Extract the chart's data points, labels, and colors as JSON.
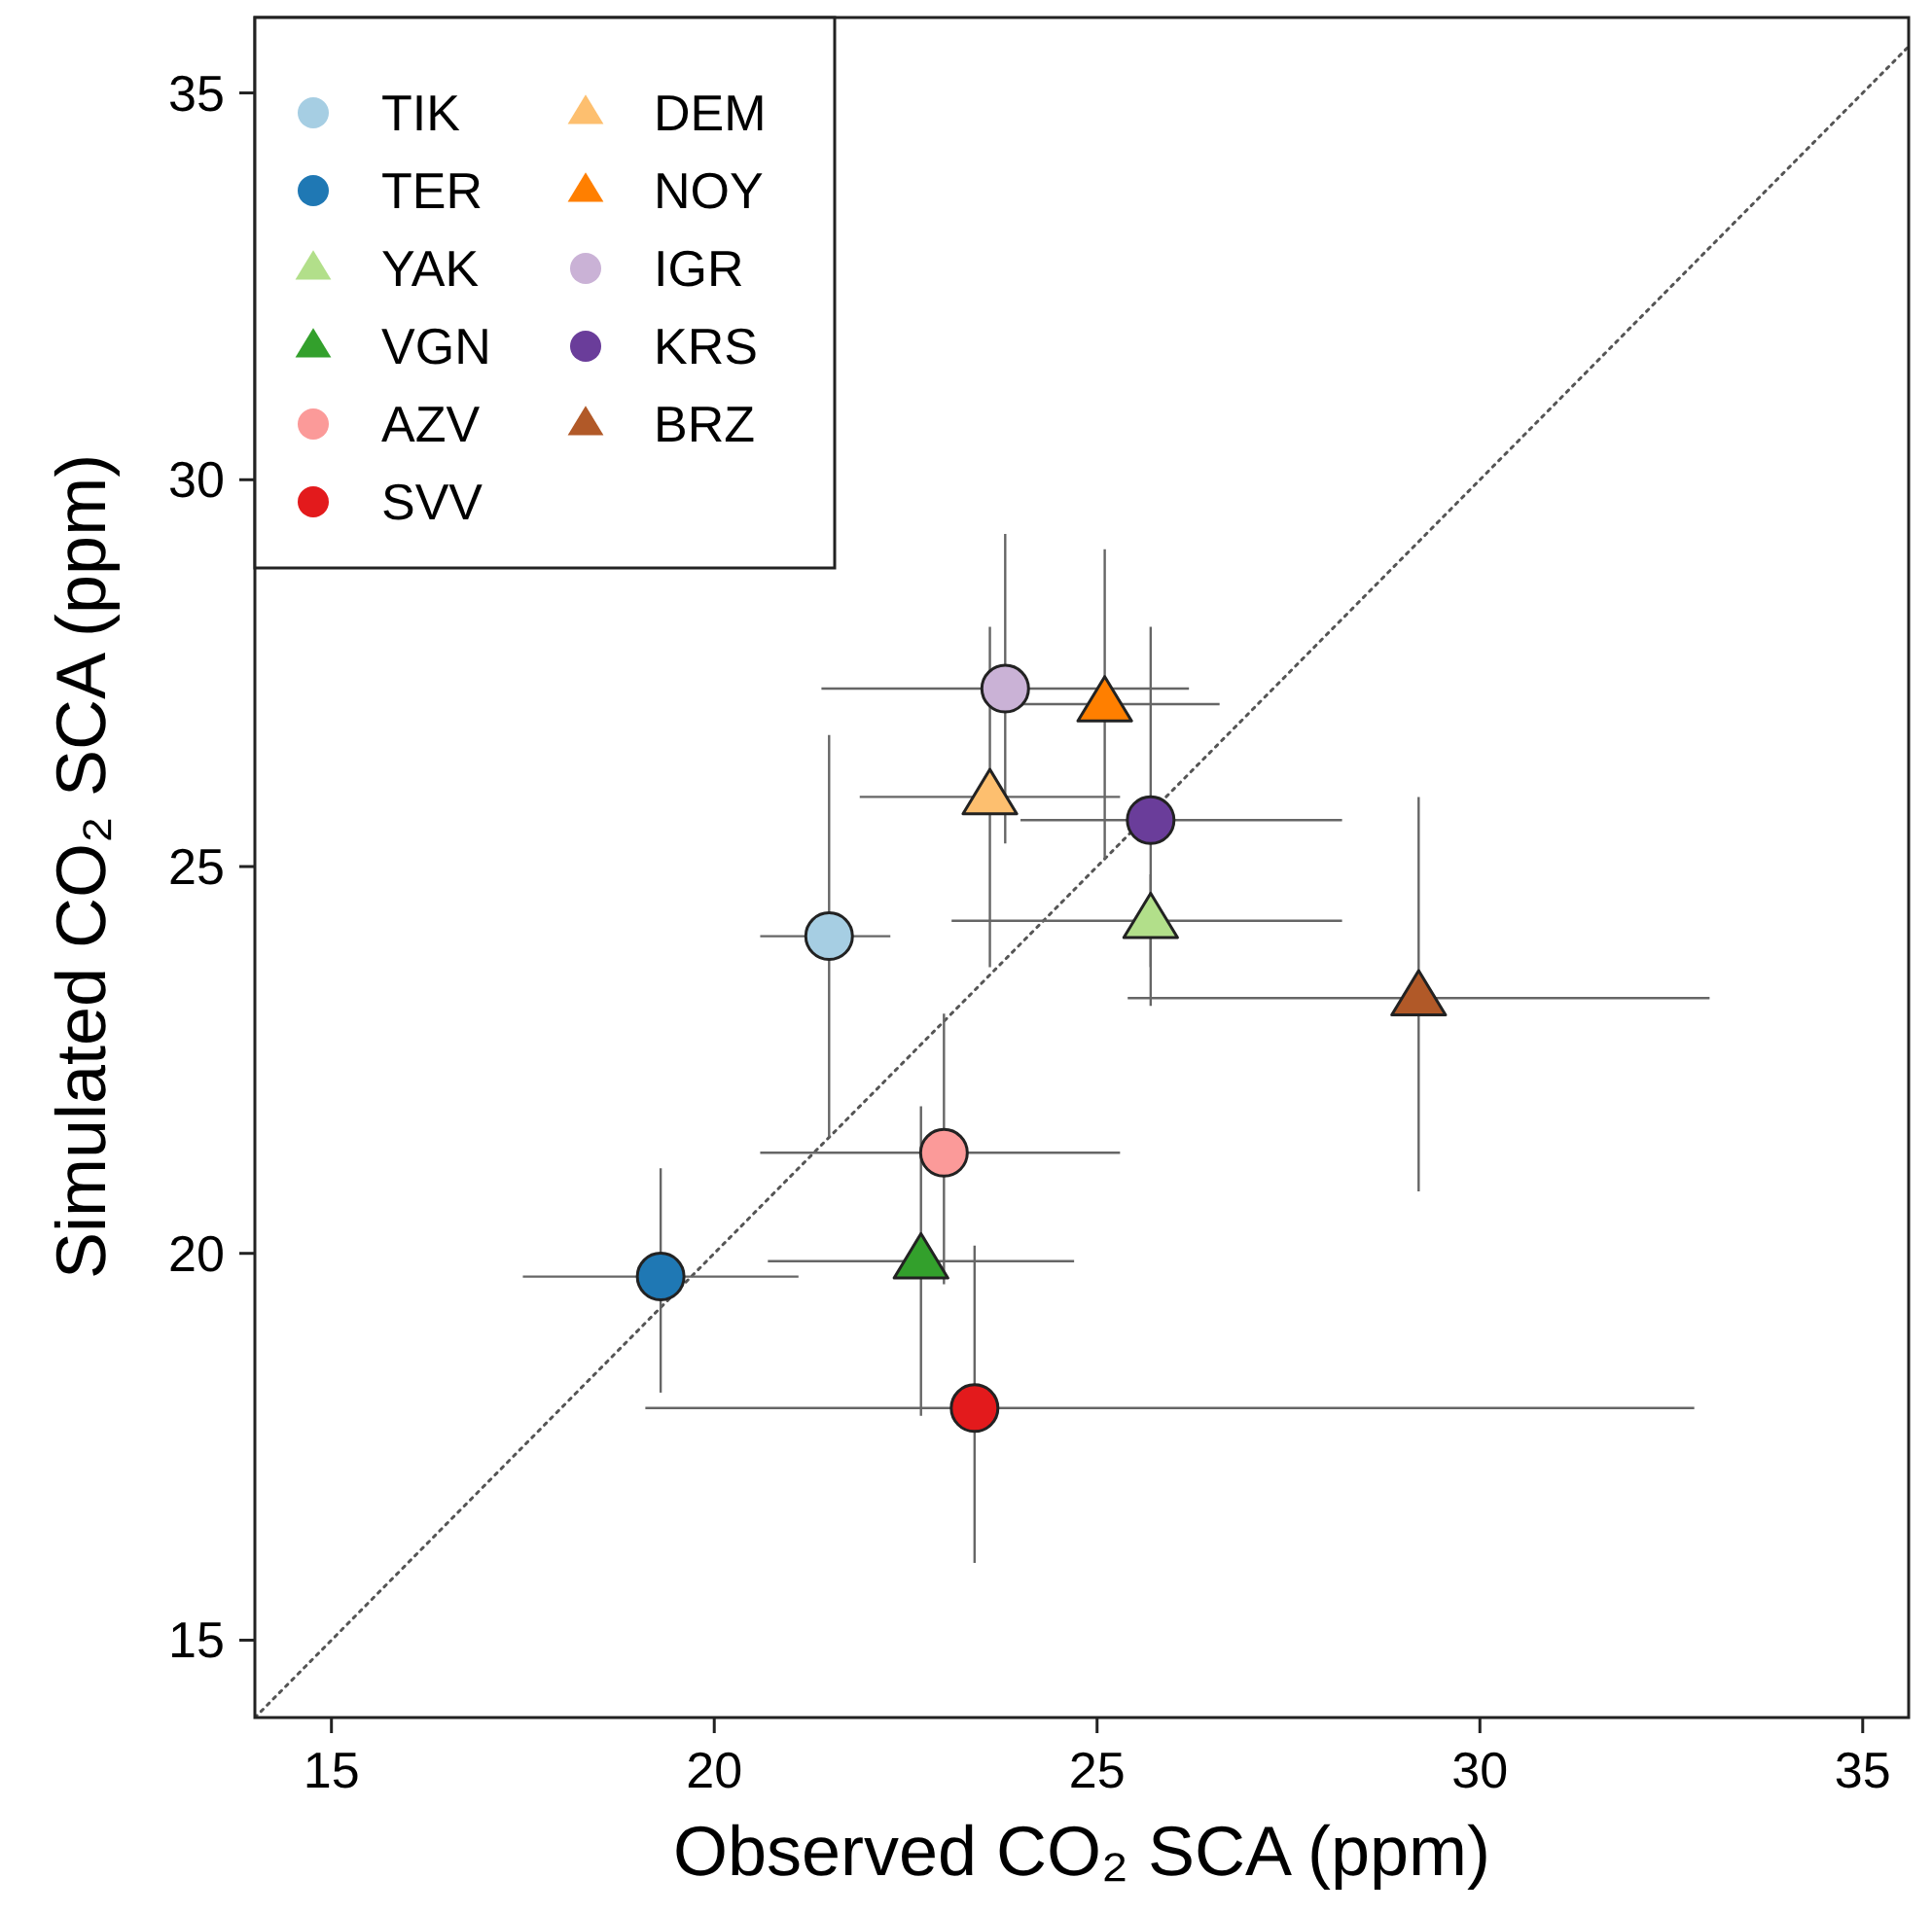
{
  "chart_data": {
    "type": "scatter",
    "xlabel": "Observed CO₂ SCA (ppm)",
    "ylabel": "Simulated CO₂ SCA (ppm)",
    "xlim": [
      14,
      35.6
    ],
    "ylim": [
      14,
      36
    ],
    "xticks": [
      15,
      20,
      25,
      30,
      35
    ],
    "yticks": [
      15,
      20,
      25,
      30,
      35
    ],
    "grid": false,
    "legend": "top left",
    "series": [
      {
        "type": "line",
        "x": [
          14,
          35.6
        ],
        "values": [
          14,
          35.6
        ],
        "color": "#555555",
        "line_style": "dotted"
      },
      {
        "name": "TIK",
        "color": "#a6cee3",
        "marker": "circle",
        "x": [
          21.5
        ],
        "values": [
          24.1
        ],
        "xerrors": [
          [
            20.6,
            22.3
          ]
        ],
        "errors": [
          [
            21.5,
            26.7
          ]
        ]
      },
      {
        "name": "TER",
        "color": "#1f78b4",
        "marker": "circle",
        "x": [
          19.3
        ],
        "values": [
          19.7
        ],
        "xerrors": [
          [
            17.5,
            21.1
          ]
        ],
        "errors": [
          [
            18.2,
            21.1
          ]
        ]
      },
      {
        "name": "YAK",
        "color": "#b2df8a",
        "marker": "triangle",
        "x": [
          25.7
        ],
        "values": [
          24.3
        ],
        "xerrors": [
          [
            23.1,
            28.2
          ]
        ],
        "errors": [
          [
            23.7,
            24.9
          ]
        ]
      },
      {
        "name": "VGN",
        "color": "#33a02c",
        "marker": "triangle",
        "x": [
          22.7
        ],
        "values": [
          19.9
        ],
        "xerrors": [
          [
            20.7,
            24.7
          ]
        ],
        "errors": [
          [
            17.9,
            21.9
          ]
        ]
      },
      {
        "name": "AZV",
        "color": "#fb9a99",
        "marker": "circle",
        "x": [
          23.0
        ],
        "values": [
          21.3
        ],
        "xerrors": [
          [
            20.6,
            25.3
          ]
        ],
        "errors": [
          [
            19.6,
            23.1
          ]
        ]
      },
      {
        "name": "SVV",
        "color": "#e31a1c",
        "marker": "circle",
        "x": [
          23.4
        ],
        "values": [
          18.0
        ],
        "xerrors": [
          [
            19.1,
            32.8
          ]
        ],
        "errors": [
          [
            16.0,
            20.1
          ]
        ]
      },
      {
        "name": "DEM",
        "color": "#fdbf6f",
        "marker": "triangle",
        "x": [
          23.6
        ],
        "values": [
          25.9
        ],
        "xerrors": [
          [
            21.9,
            25.3
          ]
        ],
        "errors": [
          [
            23.7,
            28.1
          ]
        ]
      },
      {
        "name": "NOY",
        "color": "#ff7f00",
        "marker": "triangle",
        "x": [
          25.1
        ],
        "values": [
          27.1
        ],
        "xerrors": [
          [
            23.6,
            26.6
          ]
        ],
        "errors": [
          [
            25.1,
            29.1
          ]
        ]
      },
      {
        "name": "IGR",
        "color": "#cab2d6",
        "marker": "circle",
        "x": [
          23.8
        ],
        "values": [
          27.3
        ],
        "xerrors": [
          [
            21.4,
            26.2
          ]
        ],
        "errors": [
          [
            25.3,
            29.3
          ]
        ]
      },
      {
        "name": "KRS",
        "color": "#6a3d9a",
        "marker": "circle",
        "x": [
          25.7
        ],
        "values": [
          25.6
        ],
        "xerrors": [
          [
            24.0,
            28.2
          ]
        ],
        "errors": [
          [
            23.2,
            28.1
          ]
        ]
      },
      {
        "name": "BRZ",
        "color": "#b15928",
        "marker": "triangle",
        "x": [
          29.2
        ],
        "values": [
          23.3
        ],
        "xerrors": [
          [
            25.4,
            33.0
          ]
        ],
        "errors": [
          [
            20.8,
            25.9
          ]
        ]
      }
    ]
  }
}
